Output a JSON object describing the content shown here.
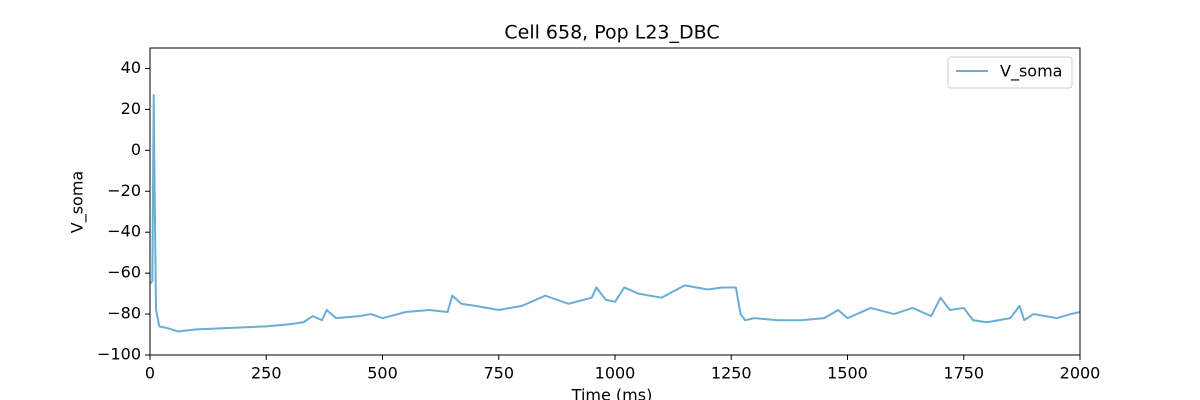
{
  "chart_data": {
    "type": "line",
    "title": "Cell 658, Pop L23_DBC",
    "x_label": "Time (ms)",
    "y_label": "V_soma",
    "legend": "upper right",
    "x": [
      0,
      5,
      8,
      10,
      13,
      20,
      40,
      60,
      100,
      150,
      200,
      250,
      300,
      330,
      350,
      370,
      380,
      400,
      450,
      475,
      500,
      550,
      600,
      640,
      650,
      670,
      700,
      750,
      800,
      850,
      900,
      950,
      960,
      980,
      1000,
      1020,
      1050,
      1100,
      1150,
      1200,
      1230,
      1260,
      1270,
      1280,
      1300,
      1350,
      1400,
      1450,
      1480,
      1500,
      1550,
      1600,
      1640,
      1680,
      1700,
      1720,
      1750,
      1770,
      1800,
      1850,
      1870,
      1880,
      1900,
      1950,
      1980,
      2000
    ],
    "series": [
      {
        "name": "V_soma",
        "color": "#6aaed6",
        "values": [
          -65,
          -64,
          27,
          -20,
          -78,
          -86,
          -87,
          -88.5,
          -87.5,
          -87,
          -86.5,
          -86,
          -85,
          -84,
          -81,
          -83,
          -78,
          -82,
          -81,
          -80,
          -82,
          -79,
          -78,
          -79,
          -71,
          -75,
          -76,
          -78,
          -76,
          -71,
          -75,
          -72,
          -67,
          -73,
          -74,
          -67,
          -70,
          -72,
          -66,
          -68,
          -67,
          -67,
          -80,
          -83,
          -82,
          -83,
          -83,
          -82,
          -78,
          -82,
          -77,
          -80,
          -77,
          -81,
          -72,
          -78,
          -77,
          -83,
          -84,
          -82,
          -76,
          -83,
          -80,
          -82,
          -80,
          -79
        ]
      }
    ],
    "xlim": [
      0,
      2000
    ],
    "xticks": [
      0,
      250,
      500,
      750,
      1000,
      1250,
      1500,
      1750,
      2000
    ],
    "ylim": [
      -100,
      50
    ],
    "yticks": [
      {
        "value": -100,
        "label": "−100"
      },
      {
        "value": -80,
        "label": "−80"
      },
      {
        "value": -60,
        "label": "−60"
      },
      {
        "value": -40,
        "label": "−40"
      },
      {
        "value": -20,
        "label": "−20"
      },
      0,
      20,
      40
    ]
  }
}
